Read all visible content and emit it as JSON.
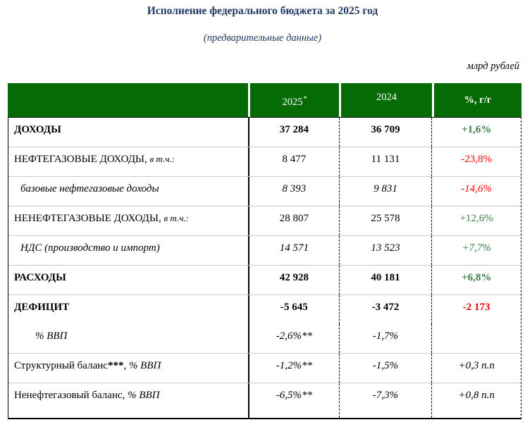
{
  "page": {
    "title": "Исполнение федерального бюджета за 2025 год",
    "subtitle": "(предварительные данные)",
    "units_note": "млрд рублей"
  },
  "colors": {
    "header_bg": "#056B05",
    "header_text": "#FFFFFF",
    "title_text": "#1F3864",
    "positive": "#377D46",
    "negative": "#F80000",
    "row_separator": "#C9C9C9"
  },
  "table": {
    "columns": [
      {
        "label": ""
      },
      {
        "label": "2025",
        "sup": "*"
      },
      {
        "label": "2024"
      },
      {
        "label": "%, г/г"
      }
    ],
    "rows": [
      {
        "lines": [
          {
            "indent": 0,
            "label_parts": [
              {
                "t": "ДОХОДЫ",
                "s": "b"
              }
            ],
            "cells": [
              {
                "t": "37 284",
                "s": "b"
              },
              {
                "t": "36 709",
                "s": "b"
              },
              {
                "t": "+1,6%",
                "s": "b",
                "c": "pos"
              }
            ]
          }
        ]
      },
      {
        "lines": [
          {
            "indent": 0,
            "label_parts": [
              {
                "t": "НЕФТЕГАЗОВЫЕ ДОХОДЫ"
              },
              {
                "t": ", "
              },
              {
                "t": "в т.ч.:",
                "s": "i",
                "small": true
              }
            ],
            "cells": [
              {
                "t": "8 477"
              },
              {
                "t": "11 131"
              },
              {
                "t": "-23,8%",
                "c": "neg"
              }
            ]
          }
        ]
      },
      {
        "lines": [
          {
            "indent": 1,
            "label_parts": [
              {
                "t": "базовые нефтегазовые доходы",
                "s": "i"
              }
            ],
            "cells": [
              {
                "t": "8 393",
                "s": "i"
              },
              {
                "t": "9 831",
                "s": "i"
              },
              {
                "t": "-14,6%",
                "s": "i",
                "c": "neg"
              }
            ]
          }
        ]
      },
      {
        "lines": [
          {
            "indent": 0,
            "label_parts": [
              {
                "t": "НЕНЕФТЕГАЗОВЫЕ ДОХОДЫ"
              },
              {
                "t": ", "
              },
              {
                "t": "в т.ч.:",
                "s": "i",
                "small": true
              }
            ],
            "cells": [
              {
                "t": "28 807"
              },
              {
                "t": "25 578"
              },
              {
                "t": "+12,6%",
                "c": "pos"
              }
            ]
          }
        ]
      },
      {
        "lines": [
          {
            "indent": 1,
            "label_parts": [
              {
                "t": "НДС (производство и импорт)",
                "s": "i"
              }
            ],
            "cells": [
              {
                "t": "14 571",
                "s": "i"
              },
              {
                "t": "13 523",
                "s": "i"
              },
              {
                "t": "+7,7%",
                "s": "i",
                "c": "pos"
              }
            ]
          }
        ]
      },
      {
        "lines": [
          {
            "indent": 0,
            "label_parts": [
              {
                "t": "РАСХОДЫ",
                "s": "b"
              }
            ],
            "cells": [
              {
                "t": "42 928",
                "s": "b"
              },
              {
                "t": "40 181",
                "s": "b"
              },
              {
                "t": "+6,8%",
                "s": "b",
                "c": "pos"
              }
            ]
          }
        ]
      },
      {
        "lines": [
          {
            "indent": 0,
            "label_parts": [
              {
                "t": "ДЕФИЦИТ",
                "s": "b"
              }
            ],
            "cells": [
              {
                "t": "-5 645",
                "s": "b"
              },
              {
                "t": "-3 472",
                "s": "b"
              },
              {
                "t": "-2 173",
                "s": "b",
                "c": "neg"
              }
            ]
          },
          {
            "indent": 2,
            "label_parts": [
              {
                "t": "% ВВП",
                "s": "i"
              }
            ],
            "cells": [
              {
                "t": "-2,6%**",
                "s": "i"
              },
              {
                "t": "-1,7%",
                "s": "i"
              },
              {
                "t": ""
              }
            ]
          }
        ]
      },
      {
        "lines": [
          {
            "indent": 0,
            "label_parts": [
              {
                "t": "Структурный баланс"
              },
              {
                "t": "***",
                "s": "b"
              },
              {
                "t": ", "
              },
              {
                "t": "% ВВП",
                "s": "i"
              }
            ],
            "cells": [
              {
                "t": "-1,2%**",
                "s": "i"
              },
              {
                "t": "-1,5%",
                "s": "i"
              },
              {
                "t": "+0,3 п.п",
                "s": "i"
              }
            ]
          }
        ]
      },
      {
        "lines": [
          {
            "indent": 0,
            "label_parts": [
              {
                "t": "Ненефтегазовый баланс, "
              },
              {
                "t": "% ВВП",
                "s": "i"
              }
            ],
            "cells": [
              {
                "t": "-6,5%**",
                "s": "i"
              },
              {
                "t": "-7,3%",
                "s": "i"
              },
              {
                "t": "+0,8 п.п",
                "s": "i"
              }
            ]
          }
        ]
      }
    ]
  }
}
